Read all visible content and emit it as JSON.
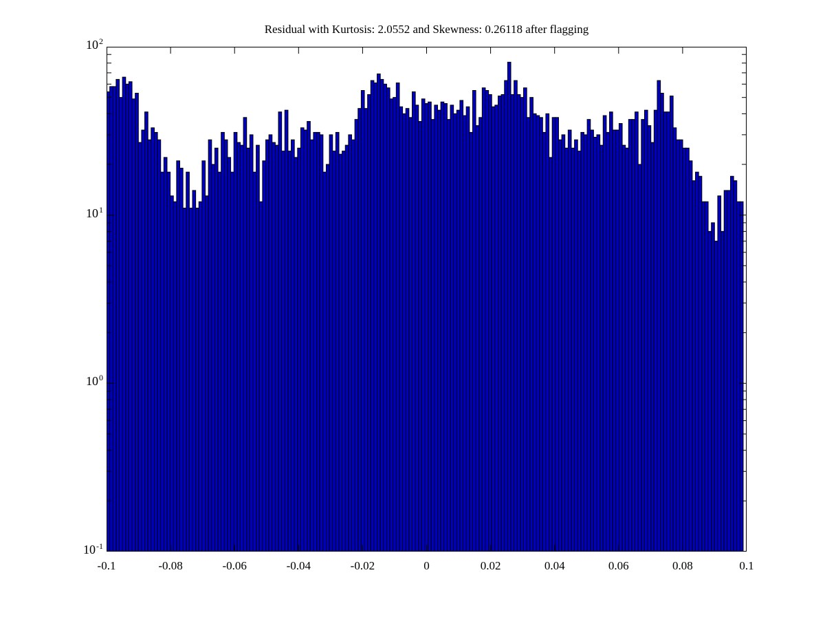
{
  "chart_data": {
    "type": "bar",
    "subtype": "histogram",
    "title": "Residual with Kurtosis: 2.0552 and Skewness: 0.26118 after flagging",
    "kurtosis": 2.0552,
    "skewness": 0.26118,
    "yscale": "log",
    "ylim": [
      0.1,
      100
    ],
    "xlim": [
      -0.1,
      0.1
    ],
    "bin_start": -0.1,
    "bin_width": 0.001,
    "n_bins": 200,
    "grid": false,
    "legend": null,
    "bar_fill": "#0000c0",
    "bar_edge": "#000000",
    "axis_color": "#000000",
    "x_ticks": [
      {
        "value": -0.1,
        "label": "-0.1"
      },
      {
        "value": -0.08,
        "label": "-0.08"
      },
      {
        "value": -0.06,
        "label": "-0.06"
      },
      {
        "value": -0.04,
        "label": "-0.04"
      },
      {
        "value": -0.02,
        "label": "-0.02"
      },
      {
        "value": 0,
        "label": "0"
      },
      {
        "value": 0.02,
        "label": "0.02"
      },
      {
        "value": 0.04,
        "label": "0.04"
      },
      {
        "value": 0.06,
        "label": "0.06"
      },
      {
        "value": 0.08,
        "label": "0.08"
      },
      {
        "value": 0.1,
        "label": "0.1"
      }
    ],
    "y_ticks": [
      {
        "value": 100,
        "base": "10",
        "exp": "2"
      },
      {
        "value": 10,
        "base": "10",
        "exp": "1"
      },
      {
        "value": 1,
        "base": "10",
        "exp": "0"
      },
      {
        "value": 0.1,
        "base": "10",
        "exp": "-1"
      }
    ],
    "values": [
      54,
      58,
      58,
      64,
      50,
      66,
      60,
      62,
      49,
      53,
      27,
      32,
      41,
      28,
      33,
      31,
      28,
      18,
      22,
      18,
      13,
      12,
      21,
      19,
      11,
      18,
      11,
      14,
      11,
      12,
      21,
      13,
      28,
      20,
      25,
      18,
      31,
      28,
      22,
      18,
      31,
      27,
      26,
      38,
      25,
      30,
      18,
      26,
      12,
      21,
      28,
      30,
      27,
      26,
      41,
      24,
      42,
      24,
      28,
      22,
      25,
      33,
      32,
      36,
      28,
      31,
      31,
      30,
      18,
      20,
      30,
      24,
      31,
      23,
      24,
      26,
      30,
      28,
      37,
      43,
      55,
      43,
      52,
      63,
      61,
      69,
      64,
      60,
      57,
      49,
      50,
      61,
      44,
      40,
      43,
      38,
      54,
      45,
      36,
      49,
      46,
      47,
      37,
      45,
      42,
      47,
      46,
      37,
      45,
      40,
      42,
      48,
      39,
      44,
      31,
      55,
      34,
      38,
      57,
      55,
      52,
      44,
      45,
      51,
      52,
      63,
      81,
      52,
      63,
      52,
      50,
      57,
      38,
      50,
      40,
      39,
      38,
      31,
      40,
      22,
      38,
      38,
      28,
      30,
      25,
      32,
      25,
      28,
      24,
      31,
      30,
      37,
      32,
      29,
      30,
      26,
      39,
      31,
      41,
      32,
      32,
      35,
      26,
      25,
      37,
      37,
      41,
      20,
      37,
      42,
      34,
      27,
      42,
      63,
      53,
      41,
      41,
      51,
      33,
      28,
      28,
      25,
      25,
      21,
      16,
      18,
      17,
      12,
      12,
      8,
      9,
      7,
      13,
      8,
      14,
      14,
      17,
      16,
      12,
      12
    ]
  }
}
